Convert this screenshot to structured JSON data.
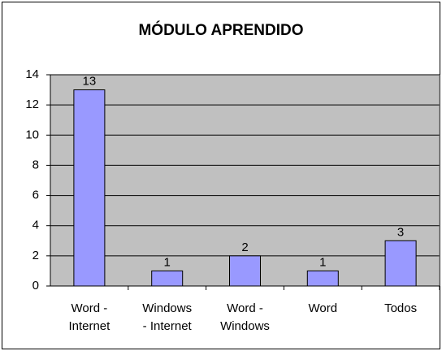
{
  "chart_data": {
    "type": "bar",
    "title": "MÓDULO APRENDIDO",
    "categories": [
      "Word -\nInternet",
      "Windows\n- Internet",
      "Word -\nWindows",
      "Word",
      "Todos"
    ],
    "values": [
      13,
      1,
      2,
      1,
      3
    ],
    "color": "#9999ff",
    "ylim": [
      0,
      14
    ],
    "yticks": [
      0,
      2,
      4,
      6,
      8,
      10,
      12,
      14
    ],
    "grid": true
  }
}
